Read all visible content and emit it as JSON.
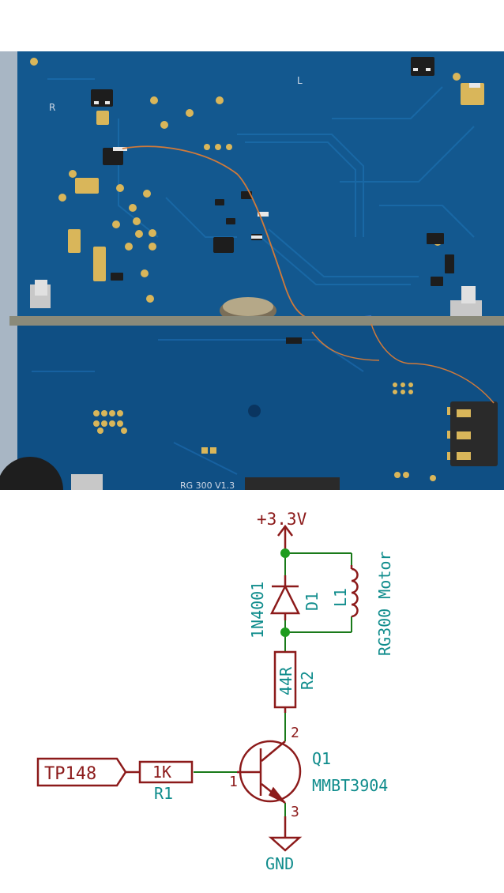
{
  "photo": {
    "silkscreen_left": "R",
    "silkscreen_right": "L",
    "board_label": "RG 300 V1.3"
  },
  "schematic": {
    "power_label": "+3.3V",
    "ground_label": "GND",
    "diode": {
      "ref": "D1",
      "value": "1N4001"
    },
    "inductor": {
      "ref": "L1",
      "value": "RG300 Motor"
    },
    "resistor_r2": {
      "ref": "R2",
      "value": "44R"
    },
    "resistor_r1": {
      "ref": "R1",
      "value": "1K"
    },
    "transistor": {
      "ref": "Q1",
      "value": "MMBT3904"
    },
    "input_label": "TP148",
    "pins": {
      "base": "1",
      "collector": "2",
      "emitter": "3"
    }
  },
  "colors": {
    "pcb": "#13588f",
    "wire": "#1a7a1a",
    "symbol": "#8c1a1a",
    "label": "#0f8c8c",
    "junction": "#1e9c1e"
  }
}
